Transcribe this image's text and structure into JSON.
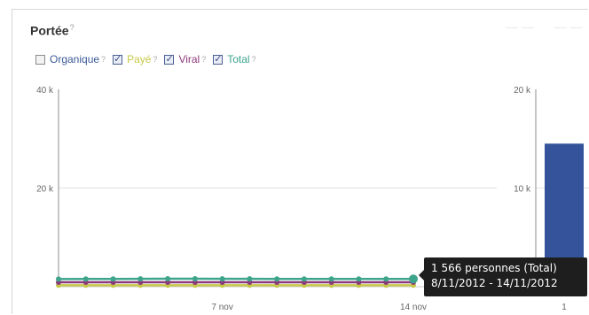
{
  "panel": {
    "title": "Portée",
    "title_help": "?"
  },
  "legend": [
    {
      "label": "Organique",
      "checked": false,
      "color": "#3b5998"
    },
    {
      "label": "Payé",
      "checked": true,
      "color": "#c7c84a"
    },
    {
      "label": "Viral",
      "checked": true,
      "color": "#8b3a7a"
    },
    {
      "label": "Total",
      "checked": true,
      "color": "#3ea58c"
    }
  ],
  "legend_help": "?",
  "tooltip": {
    "line1": "1 566 personnes (Total)",
    "line2": "8/11/2012 - 14/11/2012"
  },
  "chart_data": [
    {
      "type": "line",
      "x": [
        "1/11",
        "2/11",
        "3/11",
        "4/11",
        "5/11",
        "6/11",
        "7/11",
        "8/11",
        "9/11",
        "10/11",
        "11/11",
        "12/11",
        "13/11",
        "14/11"
      ],
      "x_tick_labels": [
        "7 nov",
        "14 nov"
      ],
      "y_tick_labels": [
        "40 k",
        "20 k"
      ],
      "ylim": [
        0,
        40000
      ],
      "grid": true,
      "series": [
        {
          "name": "Payé",
          "color": "#c7c84a",
          "values": [
            300,
            300,
            300,
            300,
            300,
            300,
            300,
            300,
            300,
            300,
            300,
            300,
            300,
            300
          ]
        },
        {
          "name": "Viral",
          "color": "#8b3a7a",
          "values": [
            900,
            900,
            900,
            900,
            900,
            900,
            900,
            900,
            900,
            900,
            900,
            900,
            900,
            900
          ]
        },
        {
          "name": "Total",
          "color": "#3ea58c",
          "values": [
            1550,
            1560,
            1580,
            1600,
            1620,
            1610,
            1600,
            1590,
            1580,
            1570,
            1560,
            1560,
            1565,
            1566
          ]
        }
      ]
    },
    {
      "type": "bar",
      "categories": [
        "1"
      ],
      "y_tick_labels": [
        "20 k",
        "10 k"
      ],
      "ylim": [
        0,
        20000
      ],
      "grid": true,
      "values": [
        14500
      ],
      "color": "#34539b"
    }
  ]
}
